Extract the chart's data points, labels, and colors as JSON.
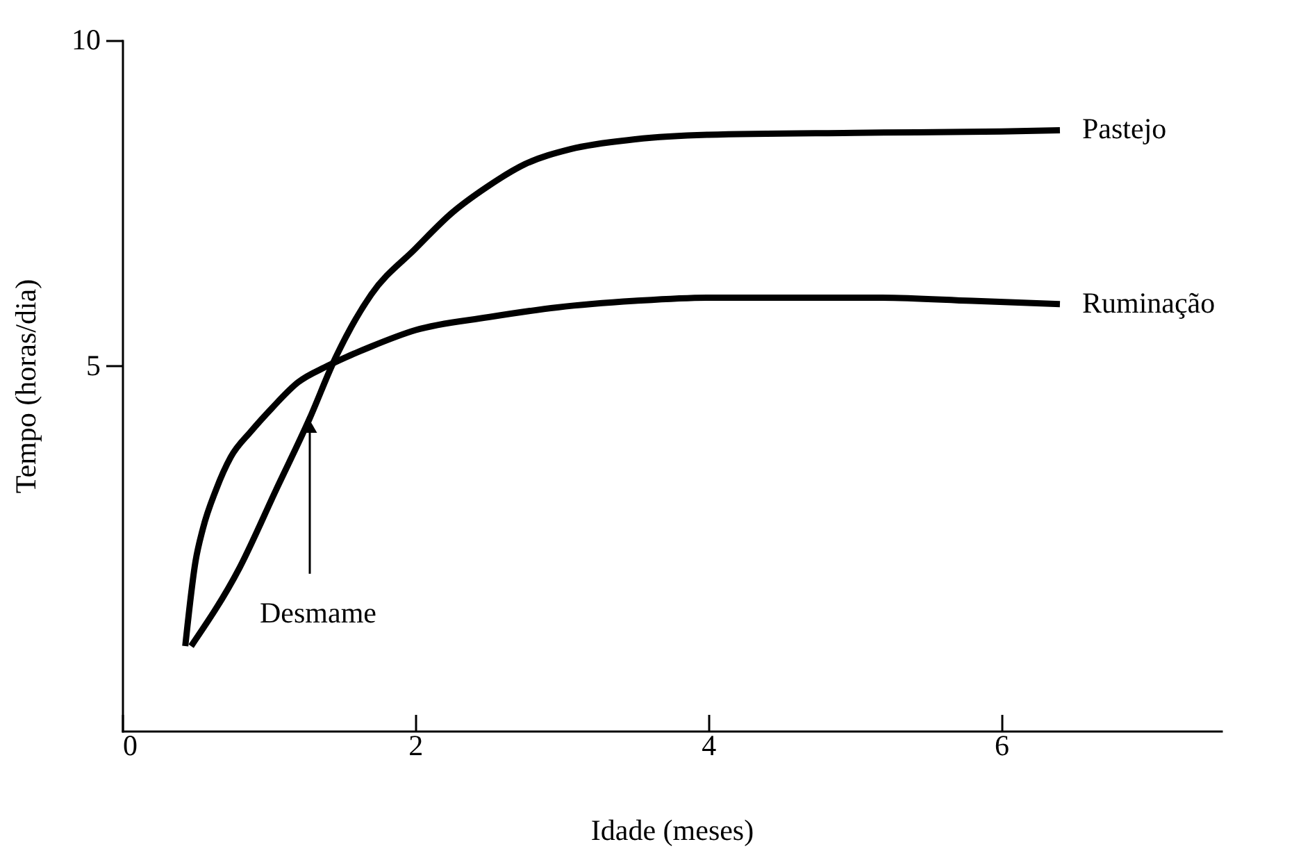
{
  "chart_data": {
    "type": "line",
    "xlabel": "Idade (meses)",
    "ylabel": "Tempo (horas/dia)",
    "xlim": [
      0,
      7.5
    ],
    "ylim": [
      -0.6,
      10
    ],
    "xticks": [
      0,
      2,
      4,
      6
    ],
    "yticks": [
      5,
      10
    ],
    "grid": false,
    "legend": false,
    "marker": "none",
    "line_style": "solid",
    "series": [
      {
        "name": "Pastejo",
        "color": "#000000",
        "x": [
          0.47,
          0.8,
          1.05,
          1.28,
          1.45,
          1.7,
          2.0,
          2.25,
          2.49,
          2.75,
          3.06,
          3.5,
          4.0,
          5.0,
          6.0,
          6.4
        ],
        "values": [
          0.7,
          1.9,
          3.1,
          4.2,
          5.1,
          6.1,
          6.8,
          7.35,
          7.75,
          8.1,
          8.33,
          8.48,
          8.55,
          8.58,
          8.6,
          8.62
        ]
      },
      {
        "name": "Ruminação",
        "color": "#000000",
        "x": [
          0.43,
          0.5,
          0.55,
          0.64,
          0.74,
          0.88,
          1.02,
          1.2,
          1.4,
          1.7,
          2.0,
          2.5,
          2.97,
          3.5,
          4.0,
          4.6,
          5.15,
          5.8,
          6.4
        ],
        "values": [
          0.7,
          2.0,
          2.5,
          3.1,
          3.6,
          4.0,
          4.35,
          4.75,
          5.0,
          5.3,
          5.55,
          5.75,
          5.9,
          6.0,
          6.05,
          6.05,
          6.05,
          6.0,
          5.95
        ]
      }
    ],
    "annotations": [
      {
        "text": "Desmame",
        "x": 1.28,
        "y": 4.2
      }
    ]
  }
}
